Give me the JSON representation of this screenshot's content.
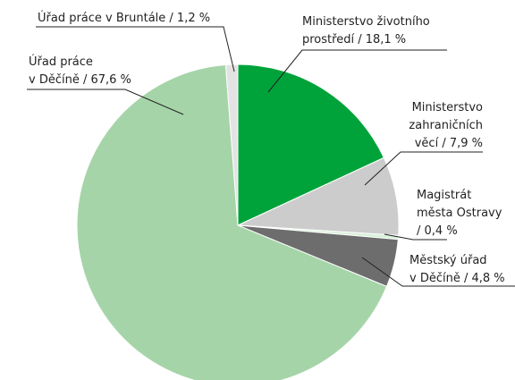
{
  "chart_data": {
    "type": "pie",
    "values": [
      18.1,
      7.9,
      0.4,
      4.8,
      67.6,
      1.2
    ],
    "value_labels": [
      [
        "Ministerstvo životního",
        "prostředí / 18,1 %"
      ],
      [
        "Ministerstvo",
        "zahraničních",
        "věcí / 7,9 %"
      ],
      [
        "Magistrát",
        "města Ostravy",
        "/ 0,4 %"
      ],
      [
        "Městský úřad",
        "v Děčíně / 4,8 %"
      ],
      [
        "Úřad práce",
        "v Děčíně / 67,6 %"
      ],
      [
        "Úřad práce v Bruntále / 1,2 %"
      ]
    ],
    "colors": [
      "#00a33a",
      "#cccccc",
      "#d9f0da",
      "#6d6d6d",
      "#a6d4a9",
      "#e3e3e3"
    ]
  }
}
